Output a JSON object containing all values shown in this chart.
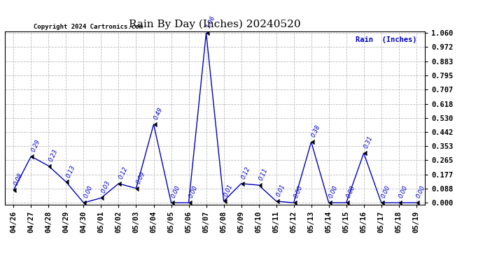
{
  "title": "Rain By Day (Inches) 20240520",
  "copyright": "Copyright 2024 Cartronics.com",
  "legend_label": "Rain  (Inches)",
  "dates": [
    "04/26",
    "04/27",
    "04/28",
    "04/29",
    "04/30",
    "05/01",
    "05/02",
    "05/03",
    "05/04",
    "05/05",
    "05/06",
    "05/07",
    "05/08",
    "05/09",
    "05/10",
    "05/11",
    "05/12",
    "05/13",
    "05/14",
    "05/15",
    "05/16",
    "05/17",
    "05/18",
    "05/19"
  ],
  "values": [
    0.08,
    0.29,
    0.23,
    0.13,
    0.0,
    0.03,
    0.12,
    0.09,
    0.49,
    0.0,
    0.0,
    1.06,
    0.01,
    0.12,
    0.11,
    0.01,
    0.0,
    0.38,
    0.0,
    0.0,
    0.31,
    0.0,
    0.0,
    0.0
  ],
  "line_color": "#0000bb",
  "marker_color": "#000000",
  "label_color": "#0000cc",
  "title_color": "#000000",
  "background_color": "#ffffff",
  "grid_color": "#bbbbbb",
  "ylim_min": 0.0,
  "ylim_max": 1.06,
  "yticks": [
    0.0,
    0.088,
    0.177,
    0.265,
    0.353,
    0.442,
    0.53,
    0.618,
    0.707,
    0.795,
    0.883,
    0.972,
    1.06
  ]
}
